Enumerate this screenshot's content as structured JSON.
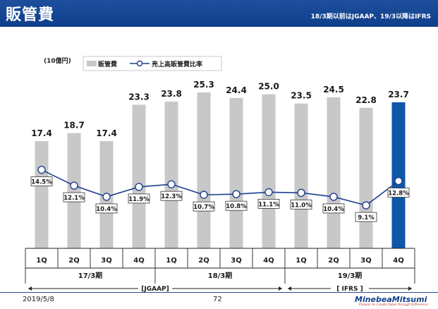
{
  "header": {
    "title": "販管費",
    "note": "18/3期以前はJGAAP、19/3以降はIFRS"
  },
  "colors": {
    "header_bg": "#1e4f9e",
    "bar_gray": "#c8c8c8",
    "bar_highlight": "#0f57a8",
    "line": "#1f3f8f"
  },
  "chart_data": {
    "type": "bar",
    "unit_label": "(10億円)",
    "legend": {
      "bar_label": "販管費",
      "line_label": "売上高販管費比率",
      "placement": "top-center"
    },
    "categories": [
      "1Q",
      "2Q",
      "3Q",
      "4Q",
      "1Q",
      "2Q",
      "3Q",
      "4Q",
      "1Q",
      "2Q",
      "3Q",
      "4Q"
    ],
    "groups": [
      {
        "label": "17/3期",
        "quarters": 4
      },
      {
        "label": "18/3期",
        "quarters": 4
      },
      {
        "label": "19/3期",
        "quarters": 4
      }
    ],
    "standards": [
      {
        "label": "[JGAAP]",
        "span": [
          0,
          7
        ]
      },
      {
        "label": "[ IFRS ]",
        "span": [
          8,
          11
        ]
      }
    ],
    "series": [
      {
        "name": "販管費",
        "kind": "bar",
        "values": [
          17.4,
          18.7,
          17.4,
          23.3,
          23.8,
          25.3,
          24.4,
          25.0,
          23.5,
          24.5,
          22.8,
          23.7
        ],
        "labels": [
          "17.4",
          "18.7",
          "17.4",
          "23.3",
          "23.8",
          "25.3",
          "24.4",
          "25.0",
          "23.5",
          "24.5",
          "22.8",
          "23.7"
        ],
        "highlight_index": 11
      },
      {
        "name": "売上高販管費比率",
        "kind": "line",
        "values": [
          14.5,
          12.1,
          10.4,
          11.9,
          12.3,
          10.7,
          10.8,
          11.1,
          11.0,
          10.4,
          9.1,
          12.8
        ],
        "labels": [
          "14.5%",
          "12.1%",
          "10.4%",
          "11.9%",
          "12.3%",
          "10.7%",
          "10.8%",
          "11.1%",
          "11.0%",
          "10.4%",
          "9.1%",
          "12.8%"
        ]
      }
    ],
    "ylim": [
      0,
      25.3
    ],
    "grid": false
  },
  "footer": {
    "date": "2019/5/8",
    "page": "72",
    "logo": {
      "name": "MinebeaMitsumi",
      "tagline": "Passion to Create Value through Difference"
    }
  }
}
